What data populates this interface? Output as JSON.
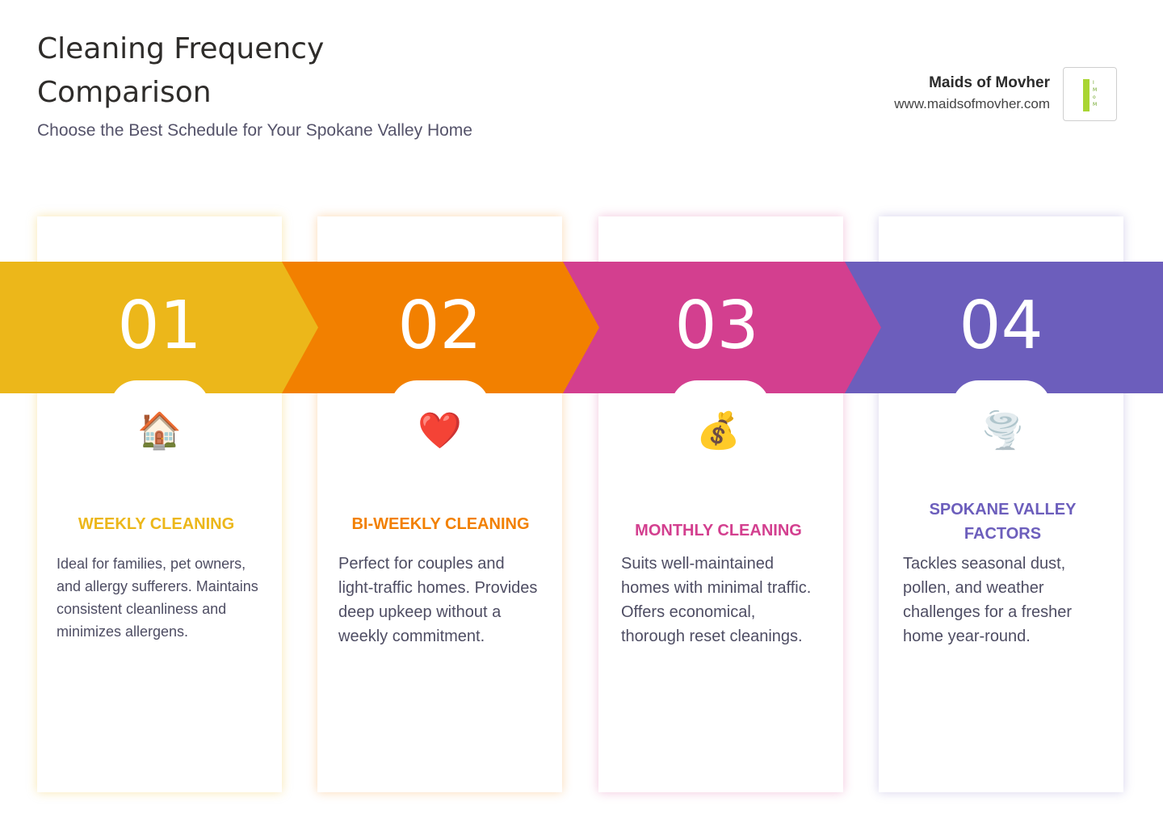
{
  "header": {
    "title": "Cleaning Frequency Comparison",
    "subtitle": "Choose the Best Schedule for Your Spokane Valley Home"
  },
  "brand": {
    "name": "Maids of Movher",
    "url": "www.maidsofmovher.com",
    "logo_letters": "I\nM\no\nM",
    "logo_color": "#a9d533"
  },
  "steps": [
    {
      "number": "01",
      "icon": "house-icon",
      "icon_glyph": "🏠",
      "color": "#ecb71a",
      "heading": "WEEKLY CLEANING",
      "description": "Ideal for families, pet owners, and allergy sufferers. Maintains consistent cleanliness and minimizes allergens."
    },
    {
      "number": "02",
      "icon": "heart-icon",
      "icon_glyph": "❤️",
      "color": "#f28000",
      "heading": "BI-WEEKLY CLEANING",
      "description": "Perfect for couples and light-traffic homes. Provides deep upkeep without a weekly commitment."
    },
    {
      "number": "03",
      "icon": "money-bag-icon",
      "icon_glyph": "💰",
      "color": "#d33f8f",
      "heading": "MONTHLY CLEANING",
      "description": "Suits well-maintained homes with minimal traffic. Offers economical, thorough reset cleanings."
    },
    {
      "number": "04",
      "icon": "tornado-icon",
      "icon_glyph": "🌪️",
      "color": "#6c5ebc",
      "heading": "SPOKANE VALLEY FACTORS",
      "description": "Tackles seasonal dust, pollen, and weather challenges for a fresher home year-round."
    }
  ]
}
